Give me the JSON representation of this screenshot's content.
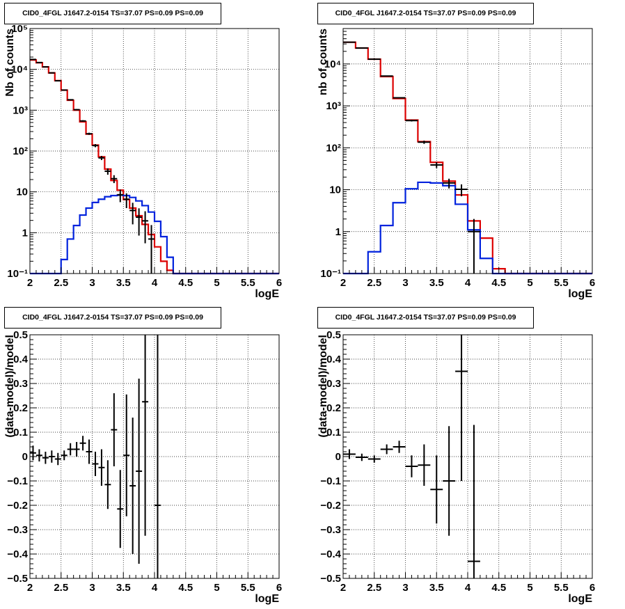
{
  "colors": {
    "data": "#000000",
    "total_model": "#dd0000",
    "source_model": "#0022dd",
    "grid": "#000000"
  },
  "chart_data": [
    {
      "type": "line",
      "title": "CID0_4FGL J1647.2-0154 TS=37.07 PS=0.09 PS=0.09",
      "xlabel": "logE",
      "ylabel": "Nb of counts",
      "xlim": [
        2,
        6
      ],
      "ylim": [
        0.1,
        100000
      ],
      "log_y": true,
      "grid": true,
      "x_ticks": [
        "2",
        "2.5",
        "3",
        "3.5",
        "4",
        "4.5",
        "5",
        "5.5",
        "6"
      ],
      "y_ticks": [
        "10⁻¹",
        "1",
        "10",
        "10²",
        "10³",
        "10⁴",
        "10⁵"
      ],
      "bin_edges": [
        2.0,
        2.1,
        2.2,
        2.3,
        2.4,
        2.5,
        2.6,
        2.7,
        2.8,
        2.9,
        3.0,
        3.1,
        3.2,
        3.3,
        3.4,
        3.5,
        3.6,
        3.7,
        3.8,
        3.9,
        4.0,
        4.1,
        4.2,
        4.3,
        4.4,
        4.5,
        4.6,
        4.7,
        4.8,
        4.9,
        5.0,
        5.1,
        5.2,
        5.3,
        5.4,
        5.5,
        5.6,
        5.7,
        5.8,
        5.9,
        6.0
      ],
      "series": [
        {
          "role": "total_model",
          "values": [
            17000,
            14500,
            11500,
            8200,
            5300,
            3100,
            1750,
            1000,
            520,
            260,
            140,
            72,
            36,
            19,
            11,
            6.5,
            4,
            2.6,
            1.6,
            0.9,
            0.45,
            0.2,
            0.12,
            0.1,
            0.1,
            0.1,
            0.1,
            0.1,
            0.1,
            0.1,
            0.1,
            0.1,
            0.1,
            0.1,
            0.1,
            0.1,
            0.1,
            0.1,
            0.1,
            0.1
          ]
        },
        {
          "role": "source_model",
          "values": [
            0.1,
            0.1,
            0.1,
            0.1,
            0.1,
            0.22,
            0.7,
            1.5,
            2.7,
            4,
            5.5,
            6.6,
            7.6,
            8.1,
            8.3,
            8.1,
            7.3,
            6,
            4.6,
            3.2,
            1.9,
            0.8,
            0.25,
            0.1,
            0.1,
            0.1,
            0.1,
            0.1,
            0.1,
            0.1,
            0.1,
            0.1,
            0.1,
            0.1,
            0.1,
            0.1,
            0.1,
            0.1,
            0.1,
            0.1
          ]
        }
      ],
      "points": [
        {
          "x": 2.05,
          "y": 17500,
          "yerr": 130
        },
        {
          "x": 2.15,
          "y": 14700,
          "yerr": 120
        },
        {
          "x": 2.25,
          "y": 11500,
          "yerr": 110
        },
        {
          "x": 2.35,
          "y": 8200,
          "yerr": 90
        },
        {
          "x": 2.45,
          "y": 5250,
          "yerr": 72
        },
        {
          "x": 2.55,
          "y": 3110,
          "yerr": 56
        },
        {
          "x": 2.65,
          "y": 1800,
          "yerr": 42
        },
        {
          "x": 2.75,
          "y": 1030,
          "yerr": 32
        },
        {
          "x": 2.85,
          "y": 545,
          "yerr": 23
        },
        {
          "x": 2.95,
          "y": 265,
          "yerr": 16
        },
        {
          "x": 3.05,
          "y": 136,
          "yerr": 12
        },
        {
          "x": 3.15,
          "y": 68,
          "yerr": 8
        },
        {
          "x": 3.25,
          "y": 32,
          "yerr": 5.7
        },
        {
          "x": 3.35,
          "y": 21,
          "yerr": 4.6
        },
        {
          "x": 3.45,
          "y": 8.5,
          "yerr": 2.9
        },
        {
          "x": 3.55,
          "y": 6.6,
          "yerr": 2.6
        },
        {
          "x": 3.65,
          "y": 3.5,
          "yerr": 1.9
        },
        {
          "x": 3.75,
          "y": 2.4,
          "yerr": 1.55
        },
        {
          "x": 3.85,
          "y": 1.95,
          "yerr": 1.4
        },
        {
          "x": 3.95,
          "y": 0.7,
          "yerr": 0.84
        }
      ]
    },
    {
      "type": "line",
      "title": "CID0_4FGL J1647.2-0154 TS=37.07 PS=0.09 PS=0.09",
      "xlabel": "logE",
      "ylabel": "nb of counts",
      "xlim": [
        2,
        6
      ],
      "ylim": [
        0.1,
        70000
      ],
      "log_y": true,
      "grid": true,
      "x_ticks": [
        "2",
        "2.5",
        "3",
        "3.5",
        "4",
        "4.5",
        "5",
        "5.5",
        "6"
      ],
      "y_ticks": [
        "10⁻¹",
        "1",
        "10",
        "10²",
        "10³",
        "10⁴"
      ],
      "bin_edges": [
        2.0,
        2.2,
        2.4,
        2.6,
        2.8,
        3.0,
        3.2,
        3.4,
        3.6,
        3.8,
        4.0,
        4.2,
        4.4,
        4.6,
        4.8,
        5.0,
        5.2,
        5.4,
        5.6,
        5.8,
        6.0
      ],
      "series": [
        {
          "role": "total_model",
          "values": [
            33000,
            24000,
            13000,
            5000,
            1500,
            460,
            140,
            45,
            16,
            7.5,
            1.8,
            0.7,
            0.13,
            0.1,
            0.1,
            0.1,
            0.1,
            0.1,
            0.1,
            0.1
          ]
        },
        {
          "role": "source_model",
          "values": [
            0.1,
            0.1,
            0.33,
            1.4,
            4.9,
            10.5,
            15,
            14.5,
            12.5,
            4.5,
            1.1,
            0.23,
            0.1,
            0.1,
            0.1,
            0.1,
            0.1,
            0.1,
            0.1,
            0.1
          ]
        }
      ],
      "points": [
        {
          "x": 2.1,
          "y": 33000,
          "yerr": 180
        },
        {
          "x": 2.3,
          "y": 24000,
          "yerr": 155
        },
        {
          "x": 2.5,
          "y": 13000,
          "yerr": 115
        },
        {
          "x": 2.7,
          "y": 5150,
          "yerr": 72
        },
        {
          "x": 2.9,
          "y": 1560,
          "yerr": 40
        },
        {
          "x": 3.1,
          "y": 445,
          "yerr": 21
        },
        {
          "x": 3.3,
          "y": 136,
          "yerr": 12
        },
        {
          "x": 3.5,
          "y": 39,
          "yerr": 6.2
        },
        {
          "x": 3.7,
          "y": 14.5,
          "yerr": 3.8
        },
        {
          "x": 3.9,
          "y": 10.2,
          "yerr": 3.2
        },
        {
          "x": 4.1,
          "y": 1.0,
          "yerr": 1.0
        }
      ]
    },
    {
      "type": "scatter",
      "title": "CID0_4FGL J1647.2-0154 TS=37.07 PS=0.09 PS=0.09",
      "xlabel": "logE",
      "ylabel": "(data-model)/model",
      "xlim": [
        2,
        6
      ],
      "ylim": [
        -0.5,
        0.5
      ],
      "grid": true,
      "x_ticks": [
        "2",
        "2.5",
        "3",
        "3.5",
        "4",
        "4.5",
        "5",
        "5.5",
        "6"
      ],
      "y_ticks": [
        "−0.5",
        "−0.4",
        "−0.3",
        "−0.2",
        "−0.1",
        "0",
        "0.1",
        "0.2",
        "0.3",
        "0.4",
        "0.5"
      ],
      "xhalf": 0.05,
      "points": [
        {
          "x": 2.05,
          "y": 0.015,
          "yerr": 0.03
        },
        {
          "x": 2.15,
          "y": 0.005,
          "yerr": 0.025
        },
        {
          "x": 2.25,
          "y": -0.005,
          "yerr": 0.025
        },
        {
          "x": 2.35,
          "y": 0.0,
          "yerr": 0.025
        },
        {
          "x": 2.45,
          "y": -0.01,
          "yerr": 0.025
        },
        {
          "x": 2.55,
          "y": 0.005,
          "yerr": 0.02
        },
        {
          "x": 2.65,
          "y": 0.03,
          "yerr": 0.025
        },
        {
          "x": 2.75,
          "y": 0.03,
          "yerr": 0.03
        },
        {
          "x": 2.85,
          "y": 0.055,
          "yerr": 0.03
        },
        {
          "x": 2.95,
          "y": 0.02,
          "yerr": 0.05
        },
        {
          "x": 3.05,
          "y": -0.03,
          "yerr": 0.05
        },
        {
          "x": 3.15,
          "y": -0.045,
          "yerr": 0.075
        },
        {
          "x": 3.25,
          "y": -0.115,
          "yerr": 0.1
        },
        {
          "x": 3.35,
          "y": 0.11,
          "yerr": 0.15
        },
        {
          "x": 3.45,
          "y": -0.215,
          "yerr": 0.16
        },
        {
          "x": 3.55,
          "y": 0.005,
          "yerr": 0.25
        },
        {
          "x": 3.65,
          "y": -0.12,
          "yerr": 0.28
        },
        {
          "x": 3.75,
          "y": -0.06,
          "yerr": 0.38
        },
        {
          "x": 3.85,
          "y": 0.225,
          "yerr": 0.55
        },
        {
          "x": 4.05,
          "y": -0.2,
          "yerr": 0.8
        }
      ]
    },
    {
      "type": "scatter",
      "title": "CID0_4FGL J1647.2-0154 TS=37.07 PS=0.09 PS=0.09",
      "xlabel": "logE",
      "ylabel": "(data-model)/model",
      "xlim": [
        2,
        6
      ],
      "ylim": [
        -0.5,
        0.5
      ],
      "grid": true,
      "x_ticks": [
        "2",
        "2.5",
        "3",
        "3.5",
        "4",
        "4.5",
        "5",
        "5.5",
        "6"
      ],
      "y_ticks": [
        "−0.5",
        "−0.4",
        "−0.3",
        "−0.2",
        "−0.1",
        "0",
        "0.1",
        "0.2",
        "0.3",
        "0.4",
        "0.5"
      ],
      "xhalf": 0.1,
      "points": [
        {
          "x": 2.1,
          "y": 0.01,
          "yerr": 0.02
        },
        {
          "x": 2.3,
          "y": -0.003,
          "yerr": 0.015
        },
        {
          "x": 2.5,
          "y": -0.01,
          "yerr": 0.015
        },
        {
          "x": 2.7,
          "y": 0.03,
          "yerr": 0.02
        },
        {
          "x": 2.9,
          "y": 0.04,
          "yerr": 0.025
        },
        {
          "x": 3.1,
          "y": -0.04,
          "yerr": 0.045
        },
        {
          "x": 3.3,
          "y": -0.035,
          "yerr": 0.085
        },
        {
          "x": 3.5,
          "y": -0.135,
          "yerr": 0.14
        },
        {
          "x": 3.7,
          "y": -0.1,
          "yerr": 0.225
        },
        {
          "x": 3.9,
          "y": 0.35,
          "yerr": 0.45
        },
        {
          "x": 4.1,
          "y": -0.43,
          "yerr": 0.56
        }
      ]
    }
  ]
}
